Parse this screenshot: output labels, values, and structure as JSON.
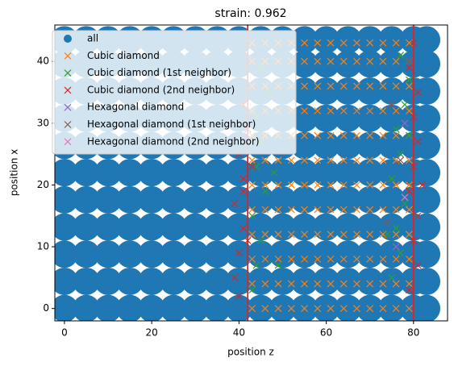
{
  "chart_data": {
    "type": "scatter",
    "title": "strain: 0.962",
    "x_label": "position z",
    "y_label": "position x",
    "xlim": [
      -2.2,
      87.8
    ],
    "ylim": [
      -2,
      45.9
    ],
    "xticks": [
      0,
      20,
      40,
      60,
      80
    ],
    "yticks": [
      0,
      10,
      20,
      30,
      40
    ],
    "vlines": [
      42,
      80
    ],
    "vline_color": "#d62728",
    "legend": "upper left",
    "series": [
      {
        "name": "all",
        "color": "#1f77b4",
        "marker": "o",
        "x": [
          0,
          5,
          10,
          15,
          20,
          25,
          30,
          35,
          40,
          45,
          50,
          55,
          60,
          65,
          70,
          75,
          80,
          83,
          0,
          5,
          10,
          15,
          20,
          25,
          30,
          35,
          40,
          45,
          50,
          55,
          60,
          65,
          70,
          75,
          80,
          83,
          0,
          5,
          10,
          15,
          20,
          25,
          30,
          35,
          40,
          45,
          50,
          55,
          60,
          65,
          70,
          75,
          80,
          83,
          0,
          5,
          10,
          15,
          20,
          25,
          30,
          35,
          40,
          45,
          50,
          55,
          60,
          65,
          70,
          75,
          80,
          83,
          0,
          5,
          10,
          15,
          20,
          25,
          30,
          35,
          40,
          45,
          50,
          55,
          60,
          65,
          70,
          75,
          80,
          83,
          0,
          5,
          10,
          15,
          20,
          25,
          30,
          35,
          40,
          45,
          50,
          55,
          60,
          65,
          70,
          75,
          80,
          83,
          0,
          5,
          10,
          15,
          20,
          25,
          30,
          35,
          40,
          45,
          50,
          55,
          60,
          65,
          70,
          75,
          80,
          83,
          0,
          5,
          10,
          15,
          20,
          25,
          30,
          35,
          40,
          45,
          50,
          55,
          60,
          65,
          70,
          75,
          80,
          83,
          0,
          5,
          10,
          15,
          20,
          25,
          30,
          35,
          40,
          45,
          50,
          55,
          60,
          65,
          70,
          75,
          80,
          83,
          0,
          5,
          10,
          15,
          20,
          25,
          30,
          35,
          40,
          45,
          50,
          55,
          60,
          65,
          70,
          75,
          80,
          83,
          0,
          5,
          10,
          15,
          20,
          25,
          30,
          35,
          40,
          45,
          50,
          55,
          60,
          65,
          70,
          75,
          80,
          83
        ],
        "y": [
          0,
          0,
          0,
          0,
          0,
          0,
          0,
          0,
          0,
          0,
          0,
          0,
          0,
          0,
          0,
          0,
          0,
          0,
          4.4,
          4.4,
          4.4,
          4.4,
          4.4,
          4.4,
          4.4,
          4.4,
          4.4,
          4.4,
          4.4,
          4.4,
          4.4,
          4.4,
          4.4,
          4.4,
          4.4,
          4.4,
          8.8,
          8.8,
          8.8,
          8.8,
          8.8,
          8.8,
          8.8,
          8.8,
          8.8,
          8.8,
          8.8,
          8.8,
          8.8,
          8.8,
          8.8,
          8.8,
          8.8,
          8.8,
          13.2,
          13.2,
          13.2,
          13.2,
          13.2,
          13.2,
          13.2,
          13.2,
          13.2,
          13.2,
          13.2,
          13.2,
          13.2,
          13.2,
          13.2,
          13.2,
          13.2,
          13.2,
          17.6,
          17.6,
          17.6,
          17.6,
          17.6,
          17.6,
          17.6,
          17.6,
          17.6,
          17.6,
          17.6,
          17.6,
          17.6,
          17.6,
          17.6,
          17.6,
          17.6,
          17.6,
          22,
          22,
          22,
          22,
          22,
          22,
          22,
          22,
          22,
          22,
          22,
          22,
          22,
          22,
          22,
          22,
          22,
          22,
          26.4,
          26.4,
          26.4,
          26.4,
          26.4,
          26.4,
          26.4,
          26.4,
          26.4,
          26.4,
          26.4,
          26.4,
          26.4,
          26.4,
          26.4,
          26.4,
          26.4,
          26.4,
          30.8,
          30.8,
          30.8,
          30.8,
          30.8,
          30.8,
          30.8,
          30.8,
          30.8,
          30.8,
          30.8,
          30.8,
          30.8,
          30.8,
          30.8,
          30.8,
          30.8,
          30.8,
          35.2,
          35.2,
          35.2,
          35.2,
          35.2,
          35.2,
          35.2,
          35.2,
          35.2,
          35.2,
          35.2,
          35.2,
          35.2,
          35.2,
          35.2,
          35.2,
          35.2,
          35.2,
          39.6,
          39.6,
          39.6,
          39.6,
          39.6,
          39.6,
          39.6,
          39.6,
          39.6,
          39.6,
          39.6,
          39.6,
          39.6,
          39.6,
          39.6,
          39.6,
          39.6,
          39.6,
          43.5,
          43.5,
          43.5,
          43.5,
          43.5,
          43.5,
          43.5,
          43.5,
          43.5,
          43.5,
          43.5,
          43.5,
          43.5,
          43.5,
          43.5,
          43.5,
          43.5,
          43.5
        ]
      },
      {
        "name": "Cubic diamond",
        "color": "#ff7f0e",
        "marker": "x",
        "x": [
          43,
          46,
          49,
          52,
          55,
          58,
          61,
          64,
          67,
          70,
          73,
          76,
          79,
          43,
          46,
          49,
          52,
          55,
          58,
          61,
          64,
          67,
          70,
          73,
          76,
          79,
          43,
          46,
          49,
          52,
          55,
          58,
          61,
          64,
          67,
          70,
          73,
          76,
          79,
          43,
          46,
          49,
          52,
          55,
          58,
          61,
          64,
          67,
          70,
          73,
          76,
          79,
          43,
          46,
          49,
          52,
          55,
          58,
          61,
          64,
          67,
          70,
          73,
          76,
          79,
          43,
          46,
          49,
          52,
          55,
          58,
          61,
          64,
          67,
          70,
          73,
          76,
          79,
          43,
          46,
          49,
          52,
          55,
          58,
          61,
          64,
          67,
          70,
          73,
          76,
          79,
          43,
          46,
          49,
          52,
          55,
          58,
          61,
          64,
          67,
          70,
          73,
          76,
          79,
          43,
          46,
          49,
          52,
          55,
          58,
          61,
          64,
          67,
          70,
          73,
          76,
          79,
          43,
          46,
          49,
          52,
          55,
          58,
          61,
          64,
          67,
          70,
          73,
          76,
          79,
          43,
          46,
          49,
          52,
          55,
          58,
          61,
          64,
          67,
          70,
          73,
          76,
          79,
          43,
          46,
          49,
          52,
          55,
          58,
          61,
          64,
          67,
          70,
          73,
          76,
          79
        ],
        "y": [
          0,
          0,
          0,
          0,
          0,
          0,
          0,
          0,
          0,
          0,
          0,
          0,
          0,
          4,
          4,
          4,
          4,
          4,
          4,
          4,
          4,
          4,
          4,
          4,
          4,
          4,
          8,
          8,
          8,
          8,
          8,
          8,
          8,
          8,
          8,
          8,
          8,
          8,
          8,
          12,
          12,
          12,
          12,
          12,
          12,
          12,
          12,
          12,
          12,
          12,
          12,
          12,
          16,
          16,
          16,
          16,
          16,
          16,
          16,
          16,
          16,
          16,
          16,
          16,
          16,
          20,
          20,
          20,
          20,
          20,
          20,
          20,
          20,
          20,
          20,
          20,
          20,
          20,
          24,
          24,
          24,
          24,
          24,
          24,
          24,
          24,
          24,
          24,
          24,
          24,
          24,
          28,
          28,
          28,
          28,
          28,
          28,
          28,
          28,
          28,
          28,
          28,
          28,
          28,
          32,
          32,
          32,
          32,
          32,
          32,
          32,
          32,
          32,
          32,
          32,
          32,
          32,
          36,
          36,
          36,
          36,
          36,
          36,
          36,
          36,
          36,
          36,
          36,
          36,
          36,
          40,
          40,
          40,
          40,
          40,
          40,
          40,
          40,
          40,
          40,
          40,
          40,
          40,
          43,
          43,
          43,
          43,
          43,
          43,
          43,
          43,
          43,
          43,
          43,
          43,
          43
        ]
      },
      {
        "name": "Cubic diamond (1st neighbor)",
        "color": "#2ca02c",
        "marker": "x",
        "x": [
          43,
          44,
          45,
          43,
          46,
          44,
          45,
          44,
          47,
          45,
          49,
          48,
          75,
          77,
          76,
          78,
          75,
          77,
          76,
          78,
          79,
          77,
          74,
          79
        ],
        "y": [
          3,
          7,
          11,
          15,
          19,
          23,
          27,
          31,
          35,
          39,
          7,
          22,
          5,
          9,
          13,
          17,
          21,
          25,
          29,
          33,
          37,
          41,
          12,
          28
        ]
      },
      {
        "name": "Cubic diamond (2nd neighbor)",
        "color": "#d62728",
        "marker": "x",
        "x": [
          39,
          40,
          41,
          39,
          41,
          40,
          42,
          41,
          40,
          42,
          41,
          43,
          79,
          81,
          80,
          81,
          79,
          80,
          81,
          80,
          81,
          79,
          80,
          82
        ],
        "y": [
          5,
          9,
          13,
          17,
          21,
          25,
          29,
          33,
          2,
          11,
          19,
          23,
          3,
          7,
          11,
          15,
          19,
          23,
          27,
          31,
          35,
          39,
          43,
          20
        ]
      },
      {
        "name": "Hexagonal diamond",
        "color": "#9467bd",
        "marker": "x",
        "x": [
          76,
          78
        ],
        "y": [
          10,
          30
        ]
      },
      {
        "name": "Hexagonal diamond (1st neighbor)",
        "color": "#8c564b",
        "marker": "x",
        "x": [
          74,
          77,
          79,
          75
        ],
        "y": [
          14,
          24,
          40,
          33
        ]
      },
      {
        "name": "Hexagonal diamond (2nd neighbor)",
        "color": "#e377c2",
        "marker": "x",
        "x": [
          78
        ],
        "y": [
          18
        ]
      }
    ]
  }
}
